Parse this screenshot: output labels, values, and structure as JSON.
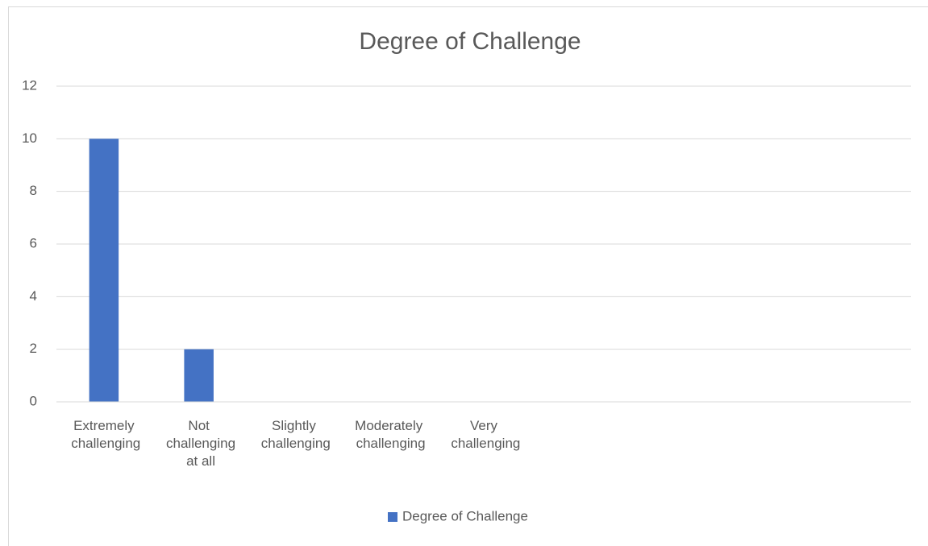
{
  "chart_data": {
    "type": "bar",
    "title": "Degree of Challenge",
    "categories": [
      "Extremely challenging",
      "Not challenging at all",
      "Slightly challenging",
      "Moderately challenging",
      "Very challenging",
      null,
      null,
      null,
      null
    ],
    "series": [
      {
        "name": "Degree of Challenge",
        "color": "#4472c4",
        "values": [
          10,
          2,
          0,
          0,
          0,
          null,
          null,
          null,
          null
        ]
      }
    ],
    "ylim": [
      0,
      12
    ],
    "yticks": [
      0,
      2,
      4,
      6,
      8,
      10,
      12
    ],
    "grid": true,
    "legend": "bottom"
  }
}
